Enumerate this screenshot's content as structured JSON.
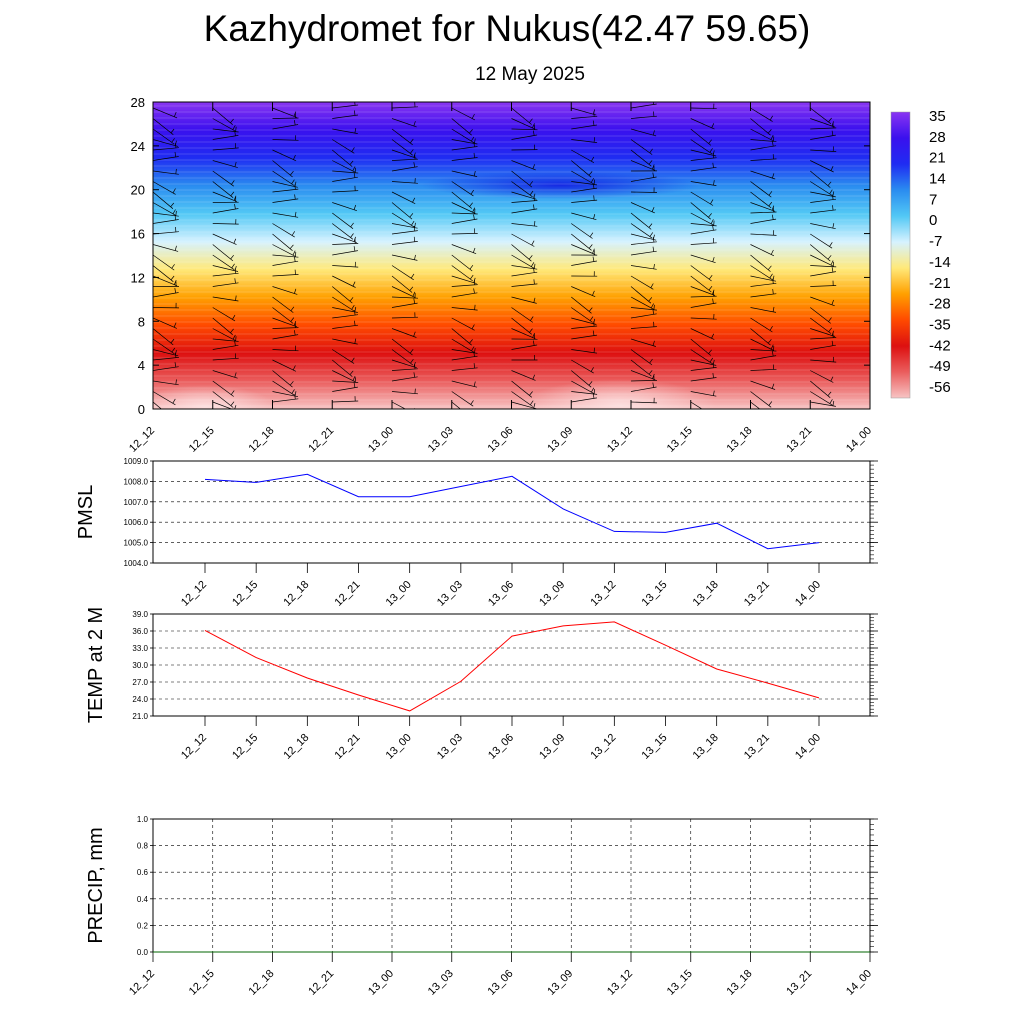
{
  "header": {
    "title": "Kazhydromet for Nukus(42.47 59.65)",
    "subtitle": "12 May 2025"
  },
  "chart_data": [
    {
      "type": "heatmap",
      "y_ticks": [
        "0",
        "4",
        "8",
        "12",
        "16",
        "20",
        "24",
        "28"
      ],
      "ylim": [
        0,
        28
      ],
      "x_ticks": [
        "12_12",
        "12_15",
        "12_18",
        "12_21",
        "13_00",
        "13_03",
        "13_06",
        "13_09",
        "13_12",
        "13_15",
        "13_18",
        "13_21",
        "14_00"
      ],
      "colorbar_labels": [
        "35",
        "28",
        "21",
        "14",
        "7",
        "0",
        "-7",
        "-14",
        "-21",
        "-28",
        "-35",
        "-42",
        "-49",
        "-56"
      ],
      "colors": [
        "#f7c4c4",
        "#ea5d5d",
        "#dd1010",
        "#ff4a00",
        "#ffa000",
        "#ffe97a",
        "#d6f2ff",
        "#52c8f5",
        "#2a8cf0",
        "#1f2cf2",
        "#3a10ee",
        "#8a35f2"
      ],
      "wind_barbs": "shown"
    },
    {
      "type": "line",
      "ylabel": "PMSL",
      "x": [
        "12_12",
        "12_15",
        "12_18",
        "12_21",
        "13_00",
        "13_03",
        "13_06",
        "13_09",
        "13_12",
        "13_15",
        "13_18",
        "13_21",
        "14_00"
      ],
      "values": [
        1008.1,
        1007.95,
        1008.35,
        1007.25,
        1007.25,
        1007.75,
        1008.25,
        1006.65,
        1005.55,
        1005.5,
        1005.95,
        1004.7,
        1005.0
      ],
      "ylim": [
        1004.0,
        1009.0
      ],
      "y_ticks": [
        "1009.0",
        "1008.0",
        "1007.0",
        "1006.0",
        "1005.0",
        "1004.0"
      ],
      "color": "#0000ff"
    },
    {
      "type": "line",
      "ylabel": "TEMP at 2 M",
      "x": [
        "12_12",
        "12_15",
        "12_18",
        "12_21",
        "13_00",
        "13_03",
        "13_06",
        "13_09",
        "13_12",
        "13_15",
        "13_18",
        "13_21",
        "14_00"
      ],
      "values": [
        36.1,
        31.3,
        27.7,
        24.7,
        21.9,
        27.1,
        35.1,
        36.9,
        37.6,
        33.5,
        29.3,
        26.8,
        24.2
      ],
      "ylim": [
        21.0,
        39.0
      ],
      "y_ticks": [
        "39.0",
        "36.0",
        "33.0",
        "30.0",
        "27.0",
        "24.0",
        "21.0"
      ],
      "color": "#ff0000"
    },
    {
      "type": "line",
      "ylabel": "PRECIP, mm",
      "x": [
        "12_12",
        "12_15",
        "12_18",
        "12_21",
        "13_00",
        "13_03",
        "13_06",
        "13_09",
        "13_12",
        "13_15",
        "13_18",
        "13_21",
        "14_00"
      ],
      "values": [
        0,
        0,
        0,
        0,
        0,
        0,
        0,
        0,
        0,
        0,
        0,
        0,
        0
      ],
      "ylim": [
        0.0,
        1.0
      ],
      "y_ticks": [
        "1.0",
        "0.8",
        "0.6",
        "0.4",
        "0.2",
        "0.0"
      ],
      "color": "#006400"
    }
  ]
}
